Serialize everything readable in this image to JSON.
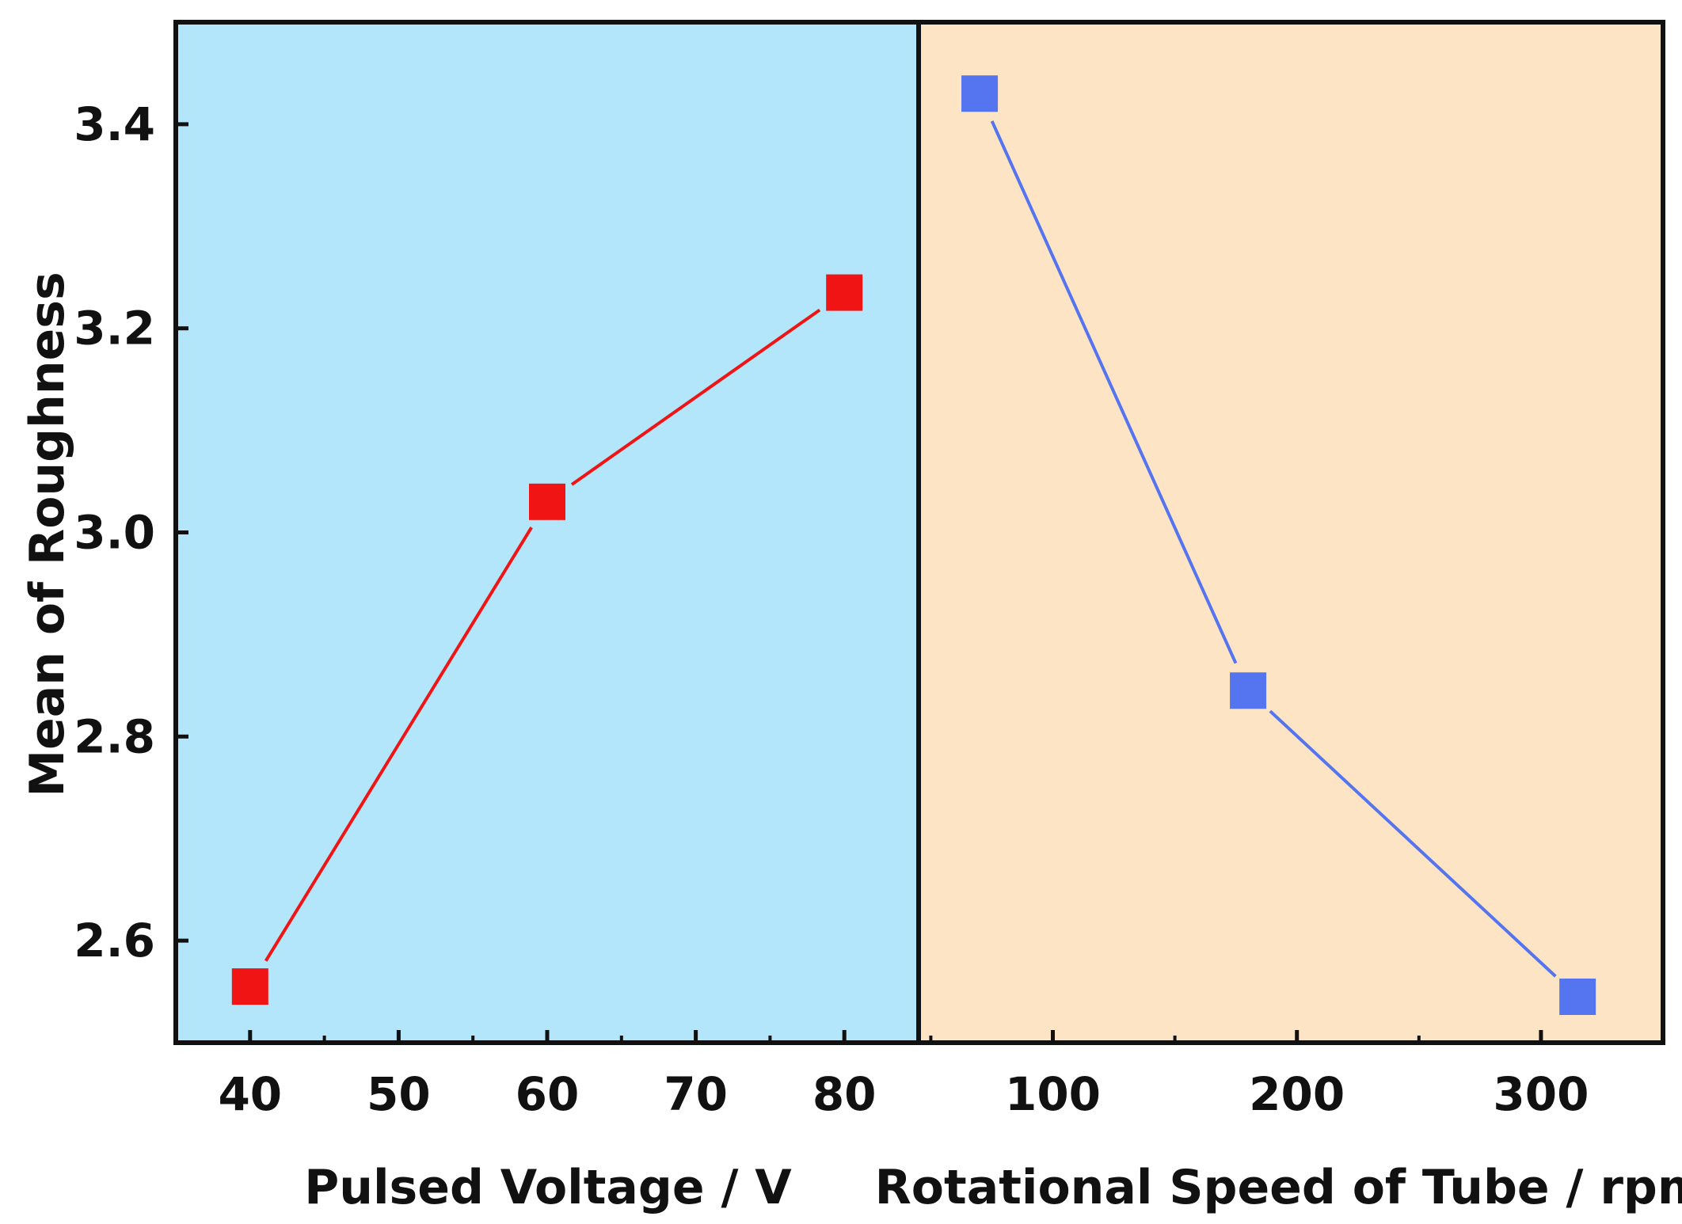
{
  "chart_data": {
    "type": "line",
    "ylabel": "Mean of Roughness",
    "ylim": [
      2.5,
      3.5
    ],
    "yticks": [
      "2.6",
      "2.8",
      "3.0",
      "3.2",
      "3.4"
    ],
    "panels": [
      {
        "name": "voltage",
        "xlabel": "Pulsed Voltage / V",
        "xlim": [
          35,
          85
        ],
        "xticks": [
          "40",
          "50",
          "60",
          "70",
          "80"
        ],
        "background": "#b3e6fa",
        "series": [
          {
            "name": "Pulsed Voltage",
            "color": "#f01414",
            "x": [
              40,
              60,
              80
            ],
            "y": [
              2.555,
              3.03,
              3.235
            ]
          }
        ]
      },
      {
        "name": "speed",
        "xlabel": "Rotational Speed of Tube / rpm",
        "xlim": [
          45,
          350
        ],
        "xticks": [
          "100",
          "200",
          "300"
        ],
        "background": "#fde4c4",
        "series": [
          {
            "name": "Rotational Speed",
            "color": "#5474f0",
            "x": [
              70,
              180,
              315
            ],
            "y": [
              3.43,
              2.845,
              2.545
            ]
          }
        ]
      }
    ]
  }
}
